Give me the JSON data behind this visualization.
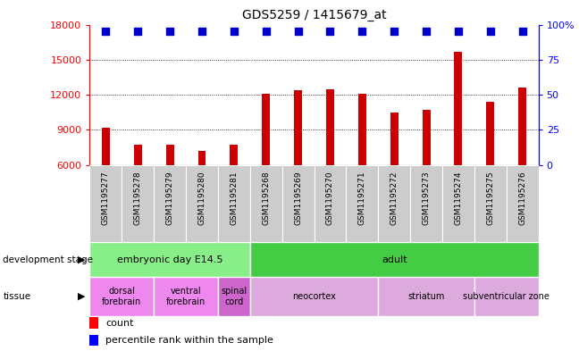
{
  "title": "GDS5259 / 1415679_at",
  "samples": [
    "GSM1195277",
    "GSM1195278",
    "GSM1195279",
    "GSM1195280",
    "GSM1195281",
    "GSM1195268",
    "GSM1195269",
    "GSM1195270",
    "GSM1195271",
    "GSM1195272",
    "GSM1195273",
    "GSM1195274",
    "GSM1195275",
    "GSM1195276"
  ],
  "counts": [
    9200,
    7700,
    7700,
    7200,
    7700,
    12100,
    12400,
    12500,
    12100,
    10500,
    10700,
    15700,
    11400,
    12600
  ],
  "y_min": 6000,
  "y_max": 18000,
  "y_ticks": [
    6000,
    9000,
    12000,
    15000,
    18000
  ],
  "y2_labels": [
    "0",
    "25",
    "50",
    "75",
    "100%"
  ],
  "bar_color": "#cc0000",
  "dot_color": "#0000cc",
  "bar_width": 0.25,
  "development_stages": [
    {
      "label": "embryonic day E14.5",
      "start": 0,
      "end": 5,
      "color": "#88ee88"
    },
    {
      "label": "adult",
      "start": 5,
      "end": 14,
      "color": "#44cc44"
    }
  ],
  "tissues": [
    {
      "label": "dorsal\nforebrain",
      "start": 0,
      "end": 2,
      "color": "#ee88ee"
    },
    {
      "label": "ventral\nforebrain",
      "start": 2,
      "end": 4,
      "color": "#ee88ee"
    },
    {
      "label": "spinal\ncord",
      "start": 4,
      "end": 5,
      "color": "#cc66cc"
    },
    {
      "label": "neocortex",
      "start": 5,
      "end": 9,
      "color": "#ddaadd"
    },
    {
      "label": "striatum",
      "start": 9,
      "end": 12,
      "color": "#ddaadd"
    },
    {
      "label": "subventricular zone",
      "start": 12,
      "end": 14,
      "color": "#ddaadd"
    }
  ],
  "header_bg": "#cccccc",
  "grid_color": "#555555"
}
